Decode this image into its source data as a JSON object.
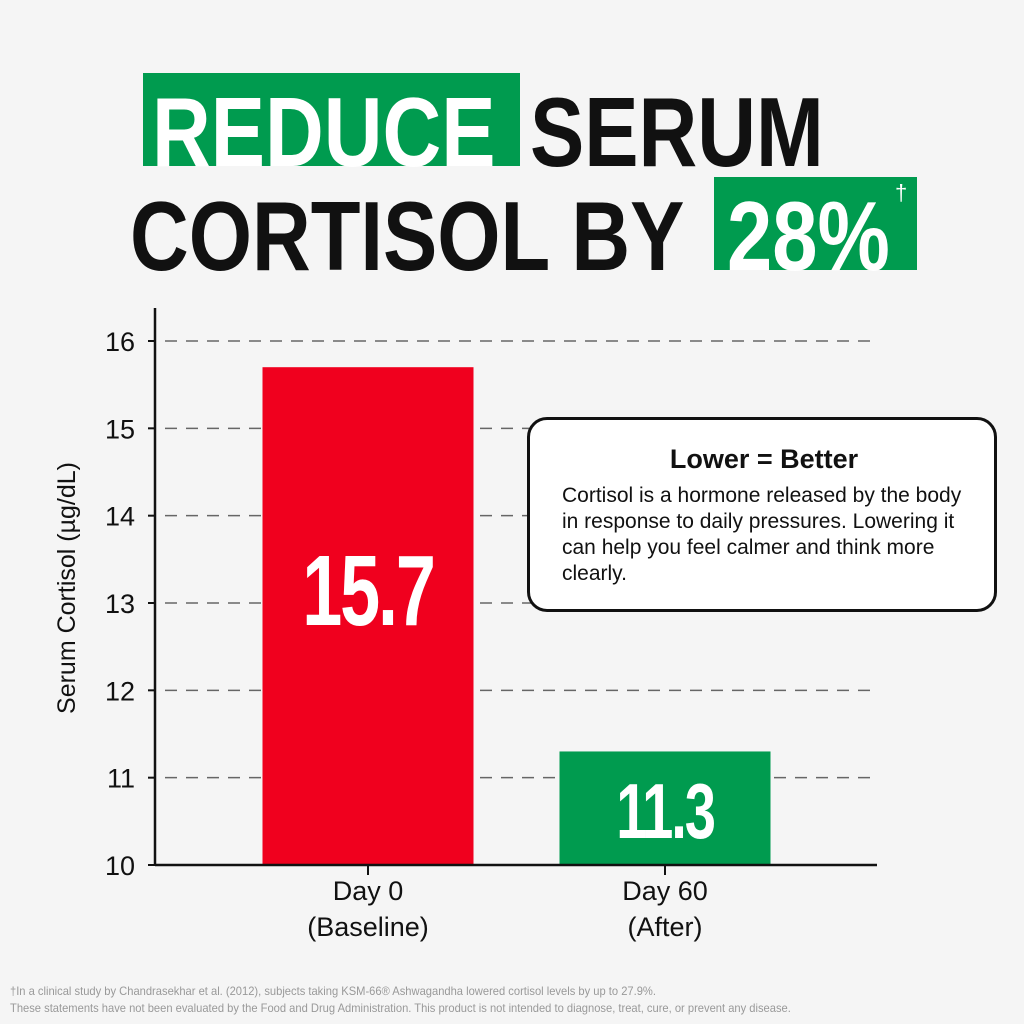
{
  "headline": {
    "line1_highlight": "REDUCE",
    "line1_rest": "SERUM",
    "line2_text": "CORTISOL BY",
    "line2_highlight": "28%",
    "dagger": "†"
  },
  "colors": {
    "green": "#009b4f",
    "red": "#f0001e",
    "text": "#111111",
    "background": "#f5f5f5"
  },
  "chart_data": {
    "type": "bar",
    "categories": [
      "Day 0\n(Baseline)",
      "Day 60\n(After)"
    ],
    "category_lines": [
      [
        "Day 0",
        "(Baseline)"
      ],
      [
        "Day 60",
        "(After)"
      ]
    ],
    "values": [
      15.7,
      11.3
    ],
    "data_labels": [
      "15.7",
      "11.3"
    ],
    "bar_colors": [
      "#f0001e",
      "#009b4f"
    ],
    "ylabel": "Serum Cortisol (µg/dL)",
    "xlabel": "",
    "ylim": [
      10,
      16
    ],
    "yticks": [
      "10",
      "11",
      "12",
      "13",
      "14",
      "15",
      "16"
    ],
    "grid": "dashed horizontal"
  },
  "callout": {
    "title": "Lower = Better",
    "body": "Cortisol is a hormone released by the body in response to daily pressures. Lowering it can help you feel calmer and think more clearly."
  },
  "footnotes": [
    "†In a clinical study by Chandrasekhar et al. (2012), subjects taking KSM-66® Ashwagandha lowered cortisol levels by up to 27.9%.",
    "These statements have not been evaluated by the Food and Drug Administration. This product is not intended to diagnose, treat, cure, or prevent any disease."
  ]
}
